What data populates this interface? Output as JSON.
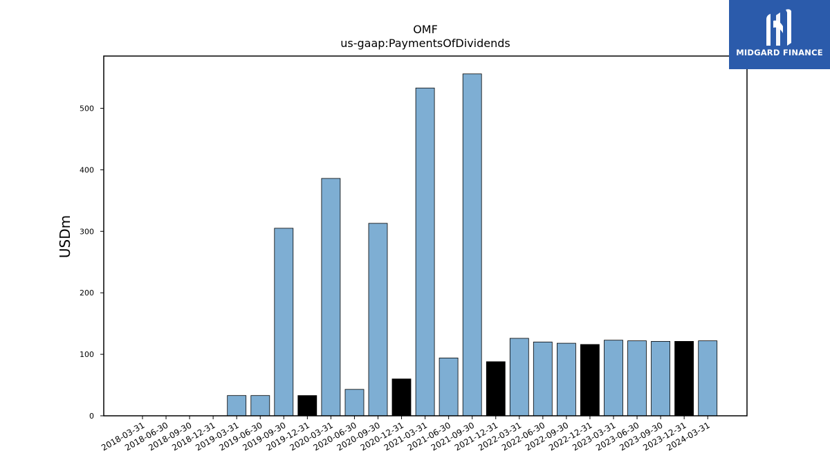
{
  "chart_data": {
    "type": "bar",
    "title": "OMF",
    "subtitle": "us-gaap:PaymentsOfDividends",
    "xlabel": "",
    "ylabel": "USDm",
    "ylim": [
      0,
      585
    ],
    "yticks": [
      0,
      100,
      200,
      300,
      400,
      500
    ],
    "grid": false,
    "categories": [
      "2018-03-31",
      "2018-06-30",
      "2018-09-30",
      "2018-12-31",
      "2019-03-31",
      "2019-06-30",
      "2019-09-30",
      "2019-12-31",
      "2020-03-31",
      "2020-06-30",
      "2020-09-30",
      "2020-12-31",
      "2021-03-31",
      "2021-06-30",
      "2021-09-30",
      "2021-12-31",
      "2022-03-31",
      "2022-06-30",
      "2022-09-30",
      "2022-12-31",
      "2023-03-31",
      "2023-06-30",
      "2023-09-30",
      "2023-12-31",
      "2024-03-31"
    ],
    "values": [
      0,
      0,
      0,
      0,
      33,
      33,
      305,
      33,
      386,
      43,
      313,
      60,
      533,
      94,
      556,
      88,
      126,
      120,
      118,
      116,
      123,
      122,
      121,
      121,
      122
    ],
    "highlight": [
      false,
      false,
      false,
      false,
      false,
      false,
      false,
      true,
      false,
      false,
      false,
      true,
      false,
      false,
      false,
      true,
      false,
      false,
      false,
      true,
      false,
      false,
      false,
      true,
      false
    ],
    "colors": {
      "bar": "#7eaed3",
      "highlight": "#000000",
      "edge": "#000000"
    }
  },
  "logo": {
    "text": "MIDGARD FINANCE",
    "background": "#2b5bab"
  }
}
